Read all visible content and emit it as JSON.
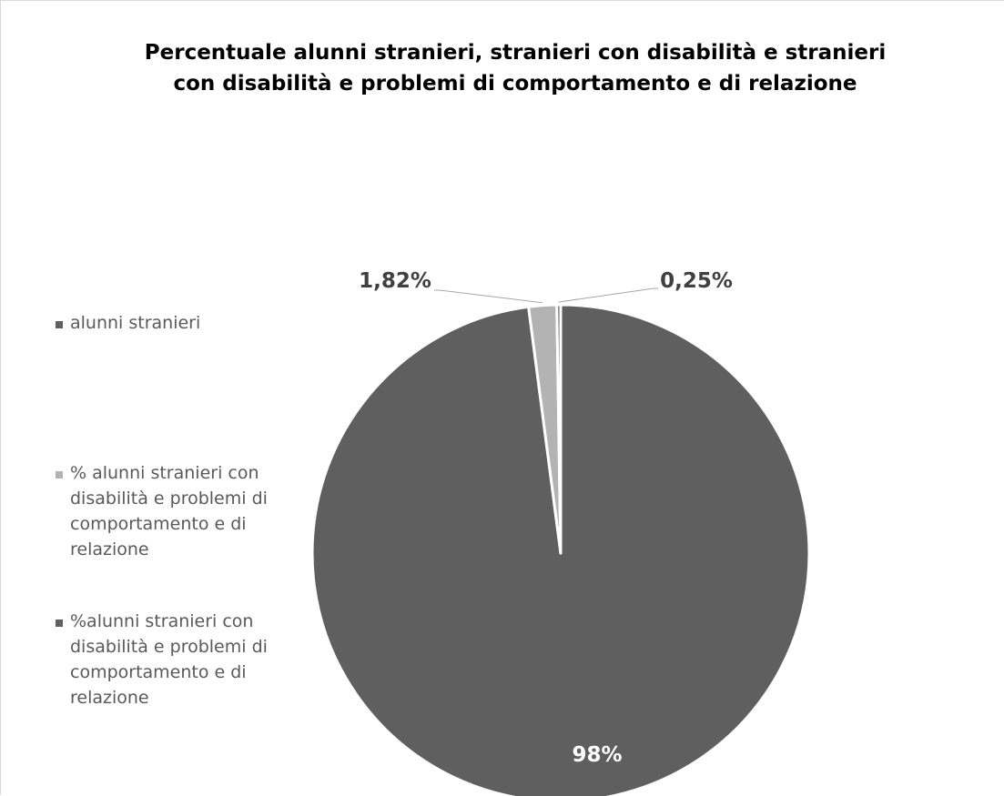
{
  "chart_data": {
    "type": "pie",
    "title": "Percentuale alunni stranieri, stranieri con disabilità e stranieri\ncon disabilità e problemi di comportamento e di relazione",
    "legend_position": "left",
    "series": [
      {
        "name": "alunni stranieri",
        "value": 98,
        "label": "98%",
        "color": "#5f5f5f"
      },
      {
        "name": "% alunni stranieri con disabilità e problemi di comportamento e di relazione",
        "value": 1.82,
        "label": "1,82%",
        "color": "#b3b3b3"
      },
      {
        "name": "%alunni stranieri con disabilità e problemi di comportamento e di relazione",
        "value": 0.25,
        "label": "0,25%",
        "color": "#5f5f5f"
      }
    ]
  }
}
